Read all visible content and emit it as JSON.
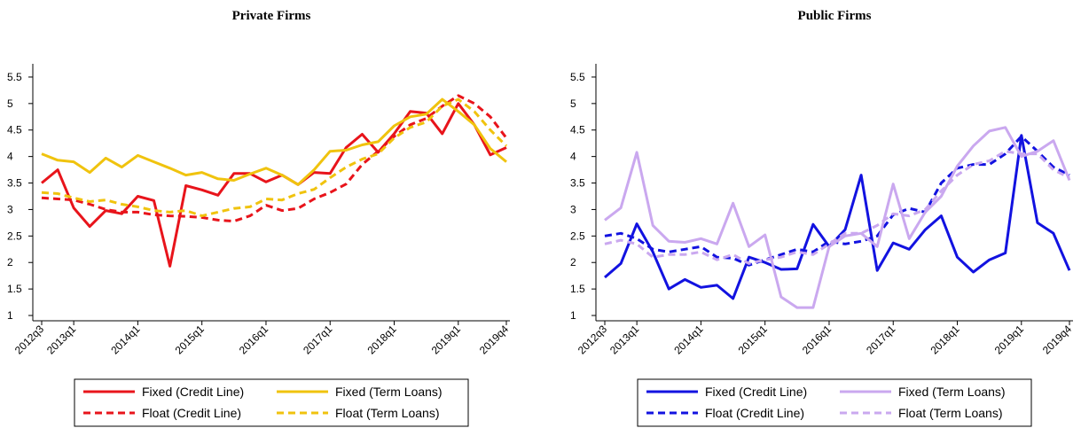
{
  "chart_data": [
    {
      "type": "line",
      "title": "Private Firms",
      "categories": [
        "2012q3",
        null,
        "2013q1",
        null,
        null,
        null,
        "2014q1",
        null,
        null,
        null,
        "2015q1",
        null,
        null,
        null,
        "2016q1",
        null,
        null,
        null,
        "2017q1",
        null,
        null,
        null,
        "2018q1",
        null,
        null,
        null,
        "2019q1",
        null,
        null,
        "2019q4"
      ],
      "ylim": [
        0.9,
        5.75
      ],
      "yticks": [
        1,
        1.5,
        2,
        2.5,
        3,
        3.5,
        4,
        4.5,
        5,
        5.5
      ],
      "legend_position": "bottom",
      "series": [
        {
          "name": "Fixed (Credit Line)",
          "color": "#e8141b",
          "dash": false,
          "values": [
            3.5,
            3.75,
            3.03,
            2.68,
            2.98,
            2.92,
            3.25,
            3.17,
            1.93,
            3.45,
            3.37,
            3.27,
            3.68,
            3.68,
            3.52,
            3.65,
            3.47,
            3.7,
            3.68,
            4.17,
            4.42,
            4.08,
            4.43,
            4.85,
            4.82,
            4.43,
            5.0,
            4.6,
            4.03,
            4.17
          ]
        },
        {
          "name": "Float (Credit Line)",
          "color": "#e8141b",
          "dash": true,
          "values": [
            3.22,
            3.2,
            3.18,
            3.1,
            3.0,
            2.95,
            2.95,
            2.9,
            2.88,
            2.87,
            2.85,
            2.8,
            2.78,
            2.88,
            3.08,
            2.98,
            3.02,
            3.2,
            3.32,
            3.48,
            3.85,
            4.1,
            4.38,
            4.6,
            4.72,
            4.95,
            5.15,
            5.0,
            4.75,
            4.35
          ]
        },
        {
          "name": "Fixed (Term Loans)",
          "color": "#f0c30e",
          "dash": false,
          "values": [
            4.05,
            3.93,
            3.9,
            3.7,
            3.97,
            3.8,
            4.02,
            3.9,
            3.78,
            3.65,
            3.7,
            3.58,
            3.55,
            3.67,
            3.78,
            3.65,
            3.47,
            3.75,
            4.1,
            4.12,
            4.22,
            4.28,
            4.58,
            4.75,
            4.8,
            5.08,
            4.85,
            4.6,
            4.15,
            3.9
          ]
        },
        {
          "name": "Float (Term Loans)",
          "color": "#f0c30e",
          "dash": true,
          "values": [
            3.32,
            3.3,
            3.22,
            3.15,
            3.18,
            3.1,
            3.05,
            2.98,
            2.95,
            2.98,
            2.88,
            2.95,
            3.02,
            3.05,
            3.2,
            3.18,
            3.3,
            3.38,
            3.6,
            3.8,
            3.95,
            4.05,
            4.35,
            4.55,
            4.65,
            4.95,
            5.08,
            4.85,
            4.5,
            4.2
          ]
        }
      ]
    },
    {
      "type": "line",
      "title": "Public Firms",
      "categories": [
        "2012q3",
        null,
        "2013q1",
        null,
        null,
        null,
        "2014q1",
        null,
        null,
        null,
        "2015q1",
        null,
        null,
        null,
        "2016q1",
        null,
        null,
        null,
        "2017q1",
        null,
        null,
        null,
        "2018q1",
        null,
        null,
        null,
        "2019q1",
        null,
        null,
        "2019q4"
      ],
      "ylim": [
        0.9,
        5.75
      ],
      "yticks": [
        1,
        1.5,
        2,
        2.5,
        3,
        3.5,
        4,
        4.5,
        5,
        5.5
      ],
      "legend_position": "bottom",
      "series": [
        {
          "name": "Fixed (Credit Line)",
          "color": "#1212e0",
          "dash": false,
          "values": [
            1.72,
            1.98,
            2.73,
            2.2,
            1.5,
            1.68,
            1.53,
            1.57,
            1.32,
            2.1,
            2.0,
            1.87,
            1.88,
            2.72,
            2.3,
            2.62,
            3.65,
            1.85,
            2.37,
            2.25,
            2.62,
            2.88,
            2.1,
            1.82,
            2.05,
            2.18,
            4.4,
            2.75,
            2.55,
            1.85
          ]
        },
        {
          "name": "Float (Credit Line)",
          "color": "#1212e0",
          "dash": true,
          "values": [
            2.5,
            2.55,
            2.45,
            2.25,
            2.2,
            2.25,
            2.3,
            2.1,
            2.08,
            1.95,
            2.05,
            2.15,
            2.25,
            2.2,
            2.4,
            2.35,
            2.4,
            2.5,
            2.9,
            3.02,
            2.95,
            3.5,
            3.78,
            3.85,
            3.85,
            4.05,
            4.38,
            4.1,
            3.8,
            3.65
          ]
        },
        {
          "name": "Fixed (Term Loans)",
          "color": "#caa8ef",
          "dash": false,
          "values": [
            2.8,
            3.03,
            4.08,
            2.7,
            2.4,
            2.38,
            2.45,
            2.35,
            3.12,
            2.3,
            2.52,
            1.35,
            1.15,
            1.15,
            2.3,
            2.5,
            2.55,
            2.3,
            3.48,
            2.45,
            2.95,
            3.25,
            3.82,
            4.2,
            4.48,
            4.55,
            4.0,
            4.1,
            4.3,
            3.55
          ]
        },
        {
          "name": "Float (Term Loans)",
          "color": "#caa8ef",
          "dash": true,
          "values": [
            2.35,
            2.42,
            2.35,
            2.1,
            2.15,
            2.15,
            2.2,
            2.05,
            2.15,
            1.98,
            2.05,
            2.1,
            2.2,
            2.15,
            2.35,
            2.55,
            2.55,
            2.7,
            2.92,
            2.88,
            3.0,
            3.35,
            3.65,
            3.85,
            3.92,
            4.1,
            4.05,
            4.05,
            3.75,
            3.6
          ]
        }
      ]
    }
  ]
}
